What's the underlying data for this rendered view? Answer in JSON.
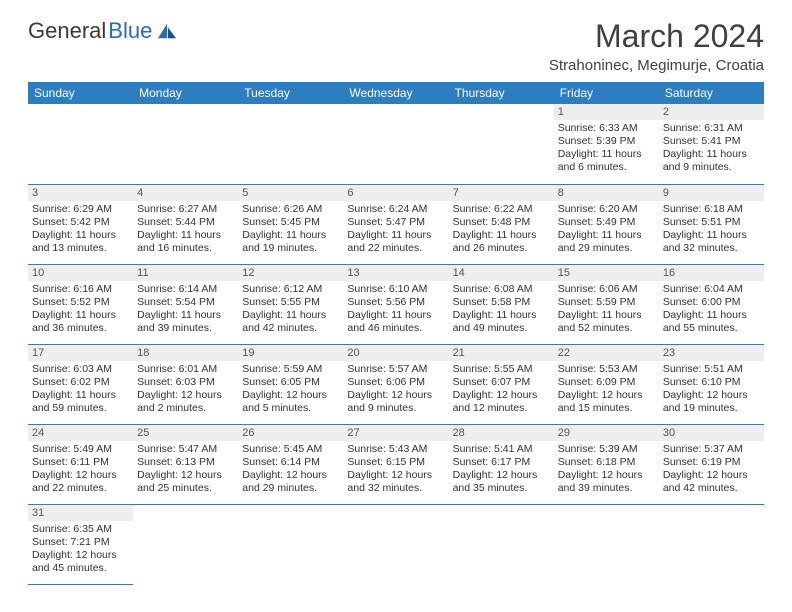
{
  "brand": {
    "part1": "General",
    "part2": "Blue"
  },
  "title": "March 2024",
  "location": "Strahoninec, Megimurje, Croatia",
  "colors": {
    "header_bg": "#2d7dc1",
    "header_text": "#ffffff",
    "daynum_bg": "#eeeeee",
    "cell_border": "#2d7dc1",
    "text": "#333333",
    "logo_blue": "#2b6cb0"
  },
  "days_of_week": [
    "Sunday",
    "Monday",
    "Tuesday",
    "Wednesday",
    "Thursday",
    "Friday",
    "Saturday"
  ],
  "weeks": [
    [
      null,
      null,
      null,
      null,
      null,
      {
        "n": "1",
        "sr": "Sunrise: 6:33 AM",
        "ss": "Sunset: 5:39 PM",
        "d1": "Daylight: 11 hours",
        "d2": "and 6 minutes."
      },
      {
        "n": "2",
        "sr": "Sunrise: 6:31 AM",
        "ss": "Sunset: 5:41 PM",
        "d1": "Daylight: 11 hours",
        "d2": "and 9 minutes."
      }
    ],
    [
      {
        "n": "3",
        "sr": "Sunrise: 6:29 AM",
        "ss": "Sunset: 5:42 PM",
        "d1": "Daylight: 11 hours",
        "d2": "and 13 minutes."
      },
      {
        "n": "4",
        "sr": "Sunrise: 6:27 AM",
        "ss": "Sunset: 5:44 PM",
        "d1": "Daylight: 11 hours",
        "d2": "and 16 minutes."
      },
      {
        "n": "5",
        "sr": "Sunrise: 6:26 AM",
        "ss": "Sunset: 5:45 PM",
        "d1": "Daylight: 11 hours",
        "d2": "and 19 minutes."
      },
      {
        "n": "6",
        "sr": "Sunrise: 6:24 AM",
        "ss": "Sunset: 5:47 PM",
        "d1": "Daylight: 11 hours",
        "d2": "and 22 minutes."
      },
      {
        "n": "7",
        "sr": "Sunrise: 6:22 AM",
        "ss": "Sunset: 5:48 PM",
        "d1": "Daylight: 11 hours",
        "d2": "and 26 minutes."
      },
      {
        "n": "8",
        "sr": "Sunrise: 6:20 AM",
        "ss": "Sunset: 5:49 PM",
        "d1": "Daylight: 11 hours",
        "d2": "and 29 minutes."
      },
      {
        "n": "9",
        "sr": "Sunrise: 6:18 AM",
        "ss": "Sunset: 5:51 PM",
        "d1": "Daylight: 11 hours",
        "d2": "and 32 minutes."
      }
    ],
    [
      {
        "n": "10",
        "sr": "Sunrise: 6:16 AM",
        "ss": "Sunset: 5:52 PM",
        "d1": "Daylight: 11 hours",
        "d2": "and 36 minutes."
      },
      {
        "n": "11",
        "sr": "Sunrise: 6:14 AM",
        "ss": "Sunset: 5:54 PM",
        "d1": "Daylight: 11 hours",
        "d2": "and 39 minutes."
      },
      {
        "n": "12",
        "sr": "Sunrise: 6:12 AM",
        "ss": "Sunset: 5:55 PM",
        "d1": "Daylight: 11 hours",
        "d2": "and 42 minutes."
      },
      {
        "n": "13",
        "sr": "Sunrise: 6:10 AM",
        "ss": "Sunset: 5:56 PM",
        "d1": "Daylight: 11 hours",
        "d2": "and 46 minutes."
      },
      {
        "n": "14",
        "sr": "Sunrise: 6:08 AM",
        "ss": "Sunset: 5:58 PM",
        "d1": "Daylight: 11 hours",
        "d2": "and 49 minutes."
      },
      {
        "n": "15",
        "sr": "Sunrise: 6:06 AM",
        "ss": "Sunset: 5:59 PM",
        "d1": "Daylight: 11 hours",
        "d2": "and 52 minutes."
      },
      {
        "n": "16",
        "sr": "Sunrise: 6:04 AM",
        "ss": "Sunset: 6:00 PM",
        "d1": "Daylight: 11 hours",
        "d2": "and 55 minutes."
      }
    ],
    [
      {
        "n": "17",
        "sr": "Sunrise: 6:03 AM",
        "ss": "Sunset: 6:02 PM",
        "d1": "Daylight: 11 hours",
        "d2": "and 59 minutes."
      },
      {
        "n": "18",
        "sr": "Sunrise: 6:01 AM",
        "ss": "Sunset: 6:03 PM",
        "d1": "Daylight: 12 hours",
        "d2": "and 2 minutes."
      },
      {
        "n": "19",
        "sr": "Sunrise: 5:59 AM",
        "ss": "Sunset: 6:05 PM",
        "d1": "Daylight: 12 hours",
        "d2": "and 5 minutes."
      },
      {
        "n": "20",
        "sr": "Sunrise: 5:57 AM",
        "ss": "Sunset: 6:06 PM",
        "d1": "Daylight: 12 hours",
        "d2": "and 9 minutes."
      },
      {
        "n": "21",
        "sr": "Sunrise: 5:55 AM",
        "ss": "Sunset: 6:07 PM",
        "d1": "Daylight: 12 hours",
        "d2": "and 12 minutes."
      },
      {
        "n": "22",
        "sr": "Sunrise: 5:53 AM",
        "ss": "Sunset: 6:09 PM",
        "d1": "Daylight: 12 hours",
        "d2": "and 15 minutes."
      },
      {
        "n": "23",
        "sr": "Sunrise: 5:51 AM",
        "ss": "Sunset: 6:10 PM",
        "d1": "Daylight: 12 hours",
        "d2": "and 19 minutes."
      }
    ],
    [
      {
        "n": "24",
        "sr": "Sunrise: 5:49 AM",
        "ss": "Sunset: 6:11 PM",
        "d1": "Daylight: 12 hours",
        "d2": "and 22 minutes."
      },
      {
        "n": "25",
        "sr": "Sunrise: 5:47 AM",
        "ss": "Sunset: 6:13 PM",
        "d1": "Daylight: 12 hours",
        "d2": "and 25 minutes."
      },
      {
        "n": "26",
        "sr": "Sunrise: 5:45 AM",
        "ss": "Sunset: 6:14 PM",
        "d1": "Daylight: 12 hours",
        "d2": "and 29 minutes."
      },
      {
        "n": "27",
        "sr": "Sunrise: 5:43 AM",
        "ss": "Sunset: 6:15 PM",
        "d1": "Daylight: 12 hours",
        "d2": "and 32 minutes."
      },
      {
        "n": "28",
        "sr": "Sunrise: 5:41 AM",
        "ss": "Sunset: 6:17 PM",
        "d1": "Daylight: 12 hours",
        "d2": "and 35 minutes."
      },
      {
        "n": "29",
        "sr": "Sunrise: 5:39 AM",
        "ss": "Sunset: 6:18 PM",
        "d1": "Daylight: 12 hours",
        "d2": "and 39 minutes."
      },
      {
        "n": "30",
        "sr": "Sunrise: 5:37 AM",
        "ss": "Sunset: 6:19 PM",
        "d1": "Daylight: 12 hours",
        "d2": "and 42 minutes."
      }
    ],
    [
      {
        "n": "31",
        "sr": "Sunrise: 6:35 AM",
        "ss": "Sunset: 7:21 PM",
        "d1": "Daylight: 12 hours",
        "d2": "and 45 minutes."
      },
      null,
      null,
      null,
      null,
      null,
      null
    ]
  ]
}
